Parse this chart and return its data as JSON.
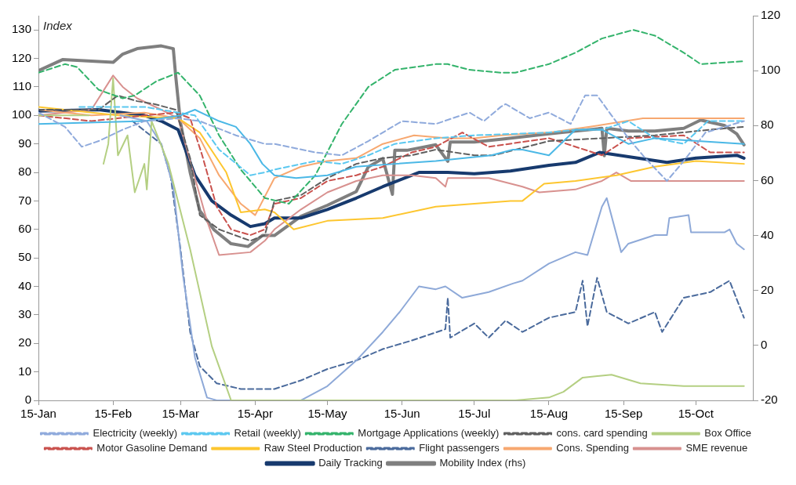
{
  "chart_data": {
    "type": "line",
    "annotations": [
      "Index"
    ],
    "legend": "bottom",
    "grid": false,
    "xlim": [
      "--01-15",
      "--11-08"
    ],
    "xticks": [
      {
        "value": "--01-15",
        "label": "15-Jan"
      },
      {
        "value": "--02-15",
        "label": "15-Feb"
      },
      {
        "value": "--03-15",
        "label": "15-Mar"
      },
      {
        "value": "--04-15",
        "label": "15-Apr"
      },
      {
        "value": "--05-15",
        "label": "15-May"
      },
      {
        "value": "--06-15",
        "label": "15-Jun"
      },
      {
        "value": "--07-15",
        "label": "15-Jul"
      },
      {
        "value": "--08-15",
        "label": "15-Aug"
      },
      {
        "value": "--09-15",
        "label": "15-Sep"
      },
      {
        "value": "--10-15",
        "label": "15-Oct"
      }
    ],
    "ylim": [
      0,
      135
    ],
    "yticks": [
      0,
      10,
      20,
      30,
      40,
      50,
      60,
      70,
      80,
      90,
      100,
      110,
      120,
      130
    ],
    "y2lim": [
      -20,
      120
    ],
    "y2ticks": [
      -20,
      0,
      20,
      40,
      60,
      80,
      100,
      120
    ],
    "series": [
      {
        "name": "Electricity (weekly)",
        "color": "#8faadc",
        "line_style": "dashed",
        "x": [
          "--01-15",
          "--01-26",
          "--02-02",
          "--02-09",
          "--02-19",
          "--02-28",
          "--03-14",
          "--03-23",
          "--04-07",
          "--04-19",
          "--04-23",
          "--05-10",
          "--05-21",
          "--06-01",
          "--06-15",
          "--06-29",
          "--07-13",
          "--07-19",
          "--07-26",
          "--07-28",
          "--08-07",
          "--08-15",
          "--08-24",
          "--08-30",
          "--09-04",
          "--09-10",
          "--09-17",
          "--09-24",
          "--10-03",
          "--10-10",
          "--10-19",
          "--11-04"
        ],
        "values": [
          101,
          96,
          89,
          91,
          95,
          98,
          99,
          98,
          93,
          90,
          90,
          87,
          86,
          91,
          98,
          97,
          101,
          98,
          103,
          104,
          99,
          101,
          97,
          107,
          107,
          100,
          92,
          85,
          77,
          84,
          94,
          98
        ]
      },
      {
        "color": "#4bb8e6",
        "line_style": "solid",
        "x": [
          "--01-15",
          "--02-28",
          "--03-15",
          "--03-21",
          "--03-31",
          "--04-07",
          "--04-13",
          "--04-18",
          "--04-23",
          "--05-02",
          "--05-15",
          "--05-27",
          "--06-12",
          "--06-29",
          "--07-22",
          "--07-31",
          "--08-04",
          "--08-15",
          "--08-26",
          "--09-06",
          "--09-17",
          "--09-28",
          "--11-04"
        ],
        "values": [
          97,
          98,
          100,
          102,
          98,
          96,
          90,
          83,
          79,
          78,
          79,
          82,
          83,
          84,
          86,
          88,
          88,
          86,
          95,
          95,
          90,
          92,
          90
        ]
      },
      {
        "name": "Retail (weekly)",
        "color": "#5bc8f0",
        "line_style": "dashed",
        "x": [
          "--02-01",
          "--02-28",
          "--03-21",
          "--03-31",
          "--04-13",
          "--04-19",
          "--04-23",
          "--05-10",
          "--05-21",
          "--06-01",
          "--06-12",
          "--06-29",
          "--07-15",
          "--08-15",
          "--08-26",
          "--09-06",
          "--09-17",
          "--09-28",
          "--10-10",
          "--10-20",
          "--11-04"
        ],
        "values": [
          103,
          103,
          100,
          88,
          79,
          80,
          81,
          84,
          83,
          86,
          90,
          92,
          93,
          94,
          95,
          95,
          98,
          92,
          90,
          98,
          98
        ]
      },
      {
        "name": "Mortgage Applications (weekly)",
        "color": "#33b36b",
        "line_style": "dashed",
        "x": [
          "--01-15",
          "--01-26",
          "--01-31",
          "--02-09",
          "--02-19",
          "--02-24",
          "--03-05",
          "--03-14",
          "--03-23",
          "--03-31",
          "--04-09",
          "--04-19",
          "--04-29",
          "--05-10",
          "--05-21",
          "--06-01",
          "--06-12",
          "--06-29",
          "--07-04",
          "--07-13",
          "--07-26",
          "--08-01",
          "--08-15",
          "--08-26",
          "--09-06",
          "--09-19",
          "--09-28",
          "--10-10",
          "--10-17",
          "--11-04"
        ],
        "values": [
          115,
          118,
          117,
          109,
          106,
          107,
          112,
          115,
          107,
          93,
          81,
          71,
          69,
          79,
          97,
          110,
          116,
          118,
          118,
          116,
          115,
          115,
          118,
          122,
          127,
          130,
          128,
          122,
          118,
          119
        ]
      },
      {
        "name": "cons. card spending",
        "color": "#5f5f5f",
        "line_style": "dashed",
        "x": [
          "--01-15",
          "--02-09",
          "--02-17",
          "--02-25",
          "--03-04",
          "--03-13",
          "--03-19",
          "--03-23",
          "--03-31",
          "--04-13",
          "--04-19",
          "--04-23",
          "--05-04",
          "--05-15",
          "--05-27",
          "--06-07",
          "--06-19",
          "--06-29",
          "--07-15",
          "--07-23",
          "--08-15",
          "--09-06",
          "--09-28",
          "--10-21",
          "--11-04"
        ],
        "values": [
          102,
          102,
          107,
          105,
          104,
          102,
          85,
          65,
          60,
          56,
          58,
          70,
          72,
          78,
          83,
          85,
          86,
          88,
          86,
          86,
          91,
          92,
          93,
          95,
          96
        ]
      },
      {
        "name": "Box Office",
        "color": "#b4cf82",
        "line_style": "solid",
        "x": [
          "--01-15",
          "--02-05",
          "--02-06",
          "--02-09",
          "--02-11",
          "--02-13",
          "--02-15",
          "--02-17",
          "--02-21",
          "--02-24",
          "--02-28",
          "--03-01",
          "--03-03",
          "--03-10",
          "--03-19",
          "--03-28",
          "--04-05",
          "--08-01",
          "--08-15",
          "--08-21",
          "--08-29",
          "--09-10",
          "--09-22",
          "--10-10",
          "--11-04"
        ],
        "values": [
          100,
          100,
          null,
          null,
          83,
          90,
          113,
          86,
          93,
          73,
          83,
          74,
          98,
          83,
          53,
          19,
          0,
          0,
          1,
          3,
          8,
          9,
          6,
          5,
          5
        ]
      },
      {
        "color": "#8ea9d8",
        "line_style": "solid",
        "x": [
          "--02-18",
          "--03-01",
          "--03-07",
          "--03-12",
          "--03-16",
          "--03-21",
          "--03-26",
          "--03-30",
          "--05-04",
          "--05-15",
          "--05-27",
          "--06-07",
          "--06-14",
          "--06-22",
          "--06-29",
          "--07-03",
          "--07-10",
          "--07-21",
          "--07-31",
          "--08-04",
          "--08-15",
          "--08-26",
          "--08-31",
          "--09-06",
          "--09-08",
          "--09-14",
          "--09-17",
          "--09-28",
          "--10-03",
          "--10-04",
          "--10-12",
          "--10-13",
          "--10-27",
          "--10-29",
          "--11-01",
          "--11-04"
        ],
        "values": [
          100,
          98,
          90,
          75,
          44,
          15,
          1,
          0,
          0,
          5,
          14,
          24,
          31,
          40,
          39,
          40,
          36,
          38,
          41,
          42,
          48,
          52,
          51,
          68,
          71,
          52,
          55,
          58,
          58,
          64,
          65,
          59,
          59,
          60,
          55,
          53
        ]
      },
      {
        "name": "Motor Gasoline Demand",
        "color": "#c9514d",
        "line_style": "dashed",
        "x": [
          "--01-15",
          "--02-06",
          "--02-28",
          "--03-13",
          "--03-19",
          "--03-24",
          "--03-30",
          "--04-05",
          "--04-13",
          "--04-19",
          "--04-23",
          "--05-04",
          "--05-15",
          "--05-27",
          "--06-07",
          "--06-19",
          "--06-29",
          "--07-10",
          "--07-21",
          "--08-15",
          "--09-06",
          "--09-17",
          "--10-10",
          "--10-21",
          "--11-04"
        ],
        "values": [
          100,
          98,
          100,
          101,
          99,
          86,
          68,
          60,
          58,
          60,
          69,
          71,
          77,
          79,
          82,
          87,
          89,
          94,
          89,
          92,
          86,
          92,
          93,
          87,
          87
        ]
      },
      {
        "name": "Raw Steel Production",
        "color": "#fdc62f",
        "line_style": "solid",
        "x": [
          "--01-15",
          "--02-17",
          "--03-14",
          "--03-23",
          "--04-03",
          "--04-09",
          "--04-19",
          "--04-23",
          "--05-01",
          "--05-15",
          "--06-07",
          "--06-29",
          "--07-15",
          "--07-30",
          "--08-04",
          "--08-13",
          "--08-26",
          "--09-12",
          "--09-28",
          "--10-15",
          "--11-04"
        ],
        "values": [
          103,
          100,
          99,
          94,
          80,
          66,
          67,
          66,
          60,
          63,
          64,
          68,
          69,
          70,
          70,
          76,
          77,
          79,
          82,
          84,
          83
        ]
      },
      {
        "name": "Flight passengers",
        "color": "#4a6a9c",
        "line_style": "dashed",
        "x": [
          "--02-23",
          "--03-07",
          "--03-11",
          "--03-15",
          "--03-19",
          "--03-23",
          "--03-30",
          "--04-09",
          "--04-19",
          "--04-23",
          "--05-04",
          "--05-15",
          "--05-27",
          "--06-07",
          "--06-19",
          "--07-03",
          "--07-04",
          "--07-05",
          "--07-15",
          "--07-21",
          "--07-28",
          "--08-04",
          "--08-15",
          "--08-26",
          "--08-29",
          "--08-31",
          "--09-04",
          "--09-08",
          "--09-17",
          "--09-28",
          "--10-01",
          "--10-10",
          "--10-21",
          "--10-29",
          "--11-04"
        ],
        "values": [
          98,
          90,
          78,
          53,
          24,
          12,
          6,
          4,
          4,
          4,
          7,
          11,
          14,
          18,
          21,
          25,
          36,
          22,
          27,
          22,
          28,
          24,
          29,
          31,
          42,
          26,
          43,
          31,
          27,
          31,
          24,
          36,
          38,
          42,
          29
        ]
      },
      {
        "name": "Cons. Spending",
        "color": "#f7a870",
        "line_style": "solid",
        "x": [
          "--01-15",
          "--02-06",
          "--02-28",
          "--03-14",
          "--03-23",
          "--03-31",
          "--04-09",
          "--04-15",
          "--04-23",
          "--05-04",
          "--05-15",
          "--05-27",
          "--06-07",
          "--06-20",
          "--07-04",
          "--07-15",
          "--07-26",
          "--08-15",
          "--09-01",
          "--09-23",
          "--11-04"
        ],
        "values": [
          102,
          100,
          101,
          99,
          92,
          79,
          69,
          65,
          78,
          82,
          84,
          85,
          90,
          93,
          92,
          92,
          93,
          94,
          96,
          99,
          99
        ]
      },
      {
        "name": "SME revenue",
        "color": "#d8918f",
        "line_style": "solid",
        "x": [
          "--01-15",
          "--02-06",
          "--02-15",
          "--02-19",
          "--02-25",
          "--03-07",
          "--03-14",
          "--03-21",
          "--03-26",
          "--03-31",
          "--04-13",
          "--04-19",
          "--04-23",
          "--05-04",
          "--05-15",
          "--05-27",
          "--06-07",
          "--06-19",
          "--06-29",
          "--07-03",
          "--07-04",
          "--07-21",
          "--08-04",
          "--08-11",
          "--08-26",
          "--09-06",
          "--09-12",
          "--09-18",
          "--11-04"
        ],
        "values": [
          100,
          102,
          114,
          110,
          106,
          102,
          99,
          78,
          63,
          51,
          52,
          56,
          60,
          67,
          73,
          77,
          79,
          79,
          78,
          75,
          78,
          78,
          75,
          73,
          74,
          77,
          80,
          77,
          77
        ]
      },
      {
        "name": "Daily Tracking",
        "color": "#173a6e",
        "line_style": "solid",
        "x": [
          "--01-15",
          "--02-09",
          "--02-28",
          "--03-07",
          "--03-14",
          "--03-21",
          "--03-28",
          "--04-05",
          "--04-13",
          "--04-19",
          "--04-23",
          "--05-04",
          "--05-15",
          "--05-27",
          "--06-07",
          "--06-22",
          "--07-04",
          "--07-15",
          "--07-30",
          "--08-15",
          "--08-26",
          "--09-05",
          "--09-17",
          "--10-03",
          "--10-15",
          "--11-01",
          "--11-04"
        ],
        "values": [
          101.5,
          102,
          100,
          98,
          95,
          79,
          70,
          65,
          61,
          62,
          64,
          64,
          67,
          71,
          75,
          80,
          80,
          79.5,
          80.5,
          82.5,
          83.5,
          87,
          85.5,
          83.5,
          85,
          86,
          85
        ]
      },
      {
        "name": "Mobility Index (rhs)",
        "color": "#7f7f7f",
        "line_style": "solid",
        "axis": "y2",
        "x": [
          "--01-15",
          "--01-25",
          "--02-15",
          "--02-19",
          "--02-25",
          "--03-07",
          "--03-12",
          "--03-13",
          "--03-15",
          "--03-19",
          "--03-23",
          "--03-29",
          "--04-05",
          "--04-12",
          "--04-18",
          "--04-23",
          "--05-04",
          "--05-15",
          "--05-27",
          "--06-01",
          "--06-07",
          "--06-11",
          "--06-12",
          "--06-17",
          "--06-29",
          "--07-04",
          "--07-05",
          "--07-15",
          "--07-26",
          "--08-15",
          "--08-26",
          "--09-06",
          "--09-07",
          "--09-08",
          "--09-17",
          "--09-28",
          "--10-10",
          "--10-17",
          "--10-27",
          "--11-01",
          "--11-04"
        ],
        "values": [
          100,
          104,
          103,
          106,
          108,
          109,
          108,
          98,
          81,
          63,
          49,
          42,
          37,
          36,
          40,
          40,
          47,
          51,
          56,
          65,
          68,
          55,
          71,
          71,
          73,
          67,
          74,
          74,
          75,
          77,
          78,
          79,
          69,
          79,
          78,
          78,
          79,
          82,
          80,
          77,
          73
        ]
      }
    ]
  }
}
